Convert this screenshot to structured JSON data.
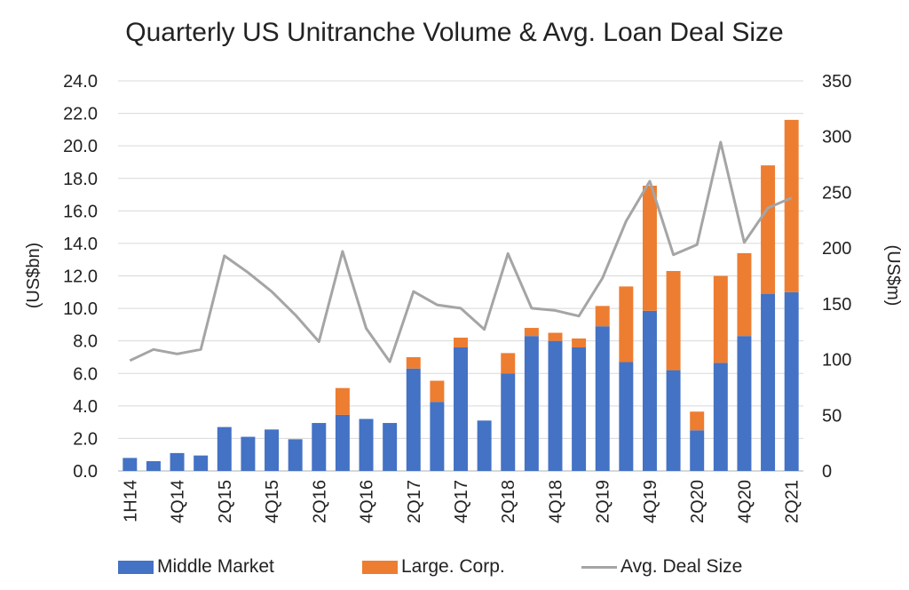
{
  "chart_data": {
    "type": "bar",
    "title": "Quarterly US Unitranche Volume & Avg. Loan Deal Size",
    "ylabel": "(US$bn)",
    "y2label": "(US$m)",
    "ylim": [
      0,
      24
    ],
    "y2lim": [
      0,
      350
    ],
    "yticks": [
      "0.0",
      "2.0",
      "4.0",
      "6.0",
      "8.0",
      "10.0",
      "12.0",
      "14.0",
      "16.0",
      "18.0",
      "20.0",
      "22.0",
      "24.0"
    ],
    "y2ticks": [
      "0",
      "50",
      "100",
      "150",
      "200",
      "250",
      "300",
      "350"
    ],
    "x_tick_labels": [
      "1H14",
      "4Q14",
      "2Q15",
      "4Q15",
      "2Q16",
      "4Q16",
      "2Q17",
      "4Q17",
      "2Q18",
      "4Q18",
      "2Q19",
      "4Q19",
      "2Q20",
      "4Q20",
      "2Q21"
    ],
    "x_tick_positions": [
      0,
      2,
      4,
      6,
      8,
      10,
      12,
      14,
      16,
      18,
      20,
      22,
      24,
      26,
      28
    ],
    "grid": true,
    "legend_position": "bottom",
    "series": [
      {
        "name": "Middle Market",
        "kind": "bar",
        "stack": "vol",
        "color": "#4472C4",
        "values": [
          0.8,
          0.6,
          1.1,
          0.95,
          2.7,
          2.1,
          2.55,
          1.95,
          2.95,
          3.45,
          3.2,
          2.95,
          6.3,
          4.25,
          7.6,
          3.1,
          6.0,
          8.3,
          8.0,
          7.6,
          8.9,
          6.7,
          9.85,
          6.2,
          2.5,
          6.65,
          8.3,
          10.9,
          11.0
        ]
      },
      {
        "name": "Large. Corp.",
        "kind": "bar",
        "stack": "vol",
        "color": "#ED7D31",
        "values": [
          0,
          0,
          0,
          0,
          0,
          0,
          0,
          0,
          0,
          1.65,
          0,
          0,
          0.7,
          1.3,
          0.6,
          0,
          1.25,
          0.5,
          0.5,
          0.55,
          1.25,
          4.65,
          7.7,
          6.1,
          1.15,
          5.35,
          5.1,
          7.9,
          10.6
        ]
      },
      {
        "name": "Avg. Deal Size",
        "kind": "line",
        "axis": "y2",
        "color": "#A5A5A5",
        "values": [
          99,
          109,
          105,
          109,
          193,
          178,
          161,
          140,
          116,
          197,
          128,
          98,
          161,
          149,
          146,
          127,
          195,
          146,
          144,
          139,
          173,
          224,
          260,
          194,
          203,
          295,
          205,
          236,
          245
        ]
      }
    ]
  }
}
